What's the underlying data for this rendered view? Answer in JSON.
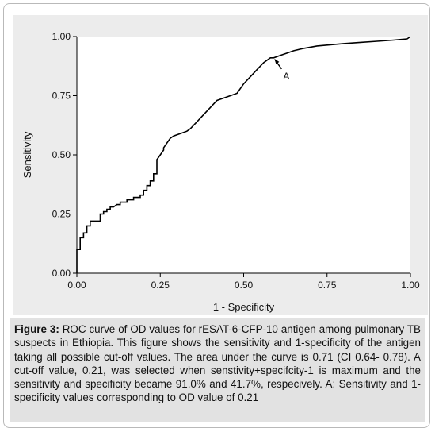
{
  "chart_data": {
    "type": "line",
    "title": "",
    "xlabel": "1 - Specificity",
    "ylabel": "Sensitivity",
    "xlim": [
      0,
      1
    ],
    "ylim": [
      0,
      1
    ],
    "x_ticks": [
      "0.00",
      "0.25",
      "0.50",
      "0.75",
      "1.00"
    ],
    "y_ticks": [
      "0.00",
      "0.25",
      "0.50",
      "0.75",
      "1.00"
    ],
    "grid": false,
    "series": [
      {
        "color": "#000000",
        "x": [
          0,
          0,
          0.01,
          0.01,
          0.02,
          0.02,
          0.03,
          0.03,
          0.04,
          0.04,
          0.07,
          0.07,
          0.08,
          0.08,
          0.09,
          0.09,
          0.1,
          0.1,
          0.11,
          0.12,
          0.13,
          0.13,
          0.15,
          0.15,
          0.17,
          0.17,
          0.19,
          0.19,
          0.2,
          0.2,
          0.21,
          0.21,
          0.22,
          0.22,
          0.23,
          0.23,
          0.24,
          0.24,
          0.25,
          0.26,
          0.26,
          0.27,
          0.28,
          0.29,
          0.31,
          0.33,
          0.34,
          0.36,
          0.38,
          0.4,
          0.42,
          0.44,
          0.46,
          0.48,
          0.5,
          0.52,
          0.54,
          0.56,
          0.58,
          0.59,
          0.61,
          0.63,
          0.65,
          0.68,
          0.72,
          0.76,
          0.8,
          0.85,
          0.9,
          0.95,
          0.99,
          1.0
        ],
        "y": [
          0,
          0.1,
          0.1,
          0.15,
          0.15,
          0.17,
          0.17,
          0.2,
          0.2,
          0.22,
          0.22,
          0.25,
          0.25,
          0.26,
          0.26,
          0.27,
          0.27,
          0.28,
          0.28,
          0.29,
          0.29,
          0.3,
          0.3,
          0.31,
          0.31,
          0.32,
          0.32,
          0.33,
          0.33,
          0.35,
          0.35,
          0.37,
          0.37,
          0.39,
          0.39,
          0.42,
          0.42,
          0.48,
          0.5,
          0.52,
          0.53,
          0.55,
          0.57,
          0.58,
          0.59,
          0.6,
          0.61,
          0.64,
          0.67,
          0.7,
          0.73,
          0.74,
          0.75,
          0.76,
          0.8,
          0.83,
          0.86,
          0.89,
          0.91,
          0.91,
          0.92,
          0.93,
          0.94,
          0.95,
          0.96,
          0.965,
          0.97,
          0.975,
          0.98,
          0.985,
          0.99,
          1.0
        ]
      }
    ],
    "annotations": [
      {
        "text": "A",
        "x": 0.59,
        "y": 0.91
      }
    ]
  },
  "caption": {
    "label": "Figure 3:",
    "text": "ROC curve of OD values for rESAT-6-CFP-10 antigen among pulmonary TB suspects in Ethiopia. This figure shows the sensitivity and 1-specificity of the antigen taking all possible cut-off values. The area under the curve is 0.71 (CI 0.64- 0.78). A cut-off value, 0.21, was selected when senstivity+specifcity-1 is maximum and the sensitivity and specificity became 91.0% and 41.7%, respecively. A: Sensitivity and 1-specificity values corresponding to OD value of 0.21"
  }
}
